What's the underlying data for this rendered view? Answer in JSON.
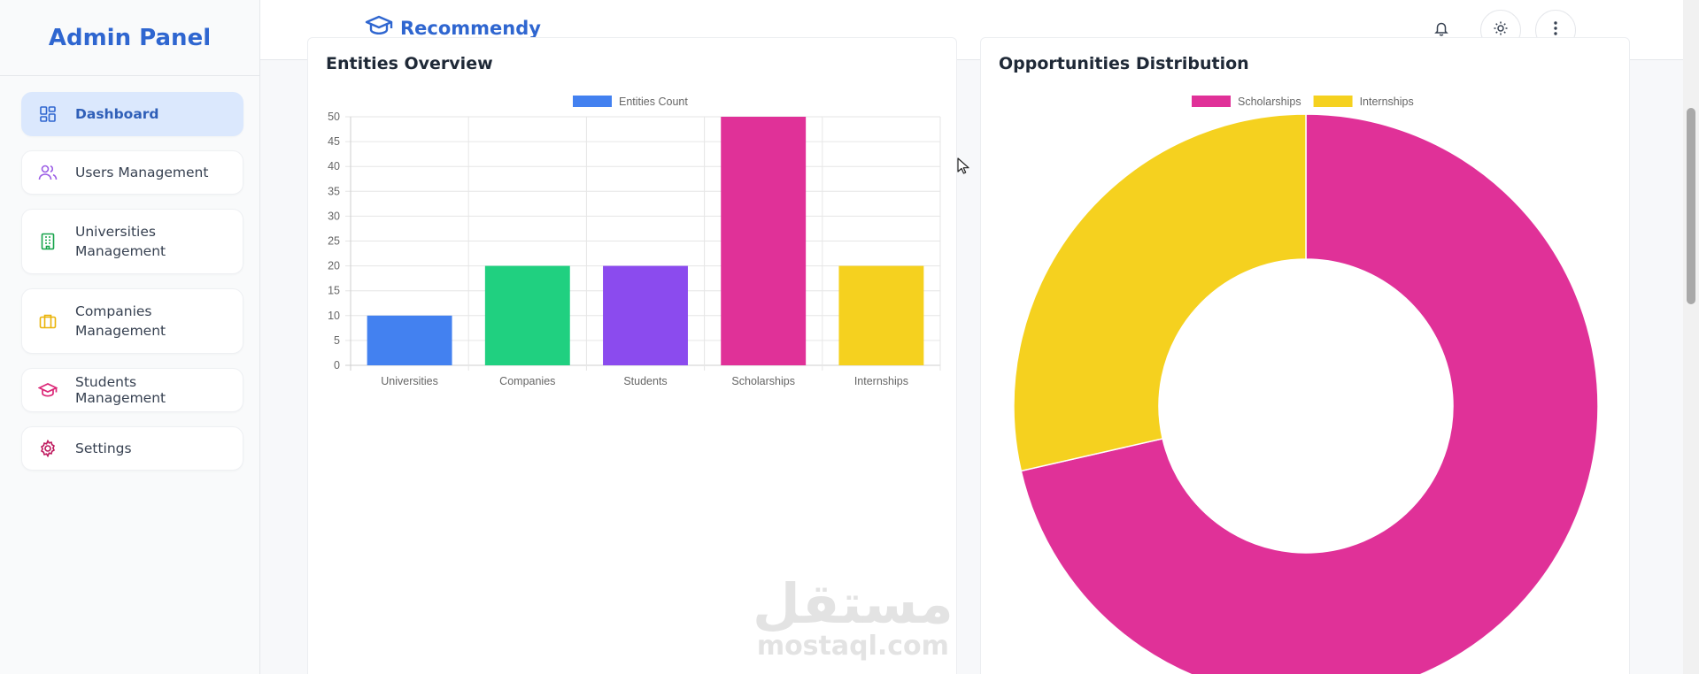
{
  "sidebar": {
    "title": "Admin Panel",
    "items": [
      {
        "label": "Dashboard",
        "icon": "dashboard-grid-icon",
        "active": true
      },
      {
        "label": "Users Management",
        "icon": "users-icon",
        "active": false
      },
      {
        "label": "Universities\nManagement",
        "icon": "building-icon",
        "active": false
      },
      {
        "label": "Companies\nManagement",
        "icon": "briefcase-icon",
        "active": false
      },
      {
        "label": "Students Management",
        "icon": "graduation-cap-icon",
        "active": false
      },
      {
        "label": "Settings",
        "icon": "gear-icon",
        "active": false
      }
    ]
  },
  "header": {
    "app_name": "Recommendy",
    "logo_icon": "graduation-cap-icon",
    "actions": [
      "bell-icon",
      "sun-icon",
      "more-vertical-icon"
    ]
  },
  "watermark": {
    "arabic": "مستقل",
    "latin": "mostaql.com"
  },
  "colors": {
    "accent": "#2f66d0",
    "universities": "#4381f0",
    "companies": "#20d080",
    "students": "#8b4bee",
    "scholarships": "#e03198",
    "internships": "#f5d11f"
  },
  "chart_data": [
    {
      "type": "bar",
      "title": "Entities Overview",
      "categories": [
        "Universities",
        "Companies",
        "Students",
        "Scholarships",
        "Internships"
      ],
      "series": [
        {
          "name": "Entities Count",
          "values": [
            10,
            20,
            20,
            50,
            20
          ]
        }
      ],
      "bar_colors": [
        "#4381f0",
        "#20d080",
        "#8b4bee",
        "#e03198",
        "#f5d11f"
      ],
      "legend_color": "#4381f0",
      "ylim": [
        0,
        50
      ],
      "yticks": [
        "0",
        "5",
        "10",
        "15",
        "20",
        "25",
        "30",
        "35",
        "40",
        "45",
        "50"
      ],
      "grid": true,
      "legend": "top"
    },
    {
      "type": "pie",
      "variant": "doughnut",
      "title": "Opportunities Distribution",
      "labels": [
        "Scholarships",
        "Internships"
      ],
      "values": [
        50,
        20
      ],
      "colors": [
        "#e03198",
        "#f5d11f"
      ],
      "legend": "top"
    }
  ]
}
